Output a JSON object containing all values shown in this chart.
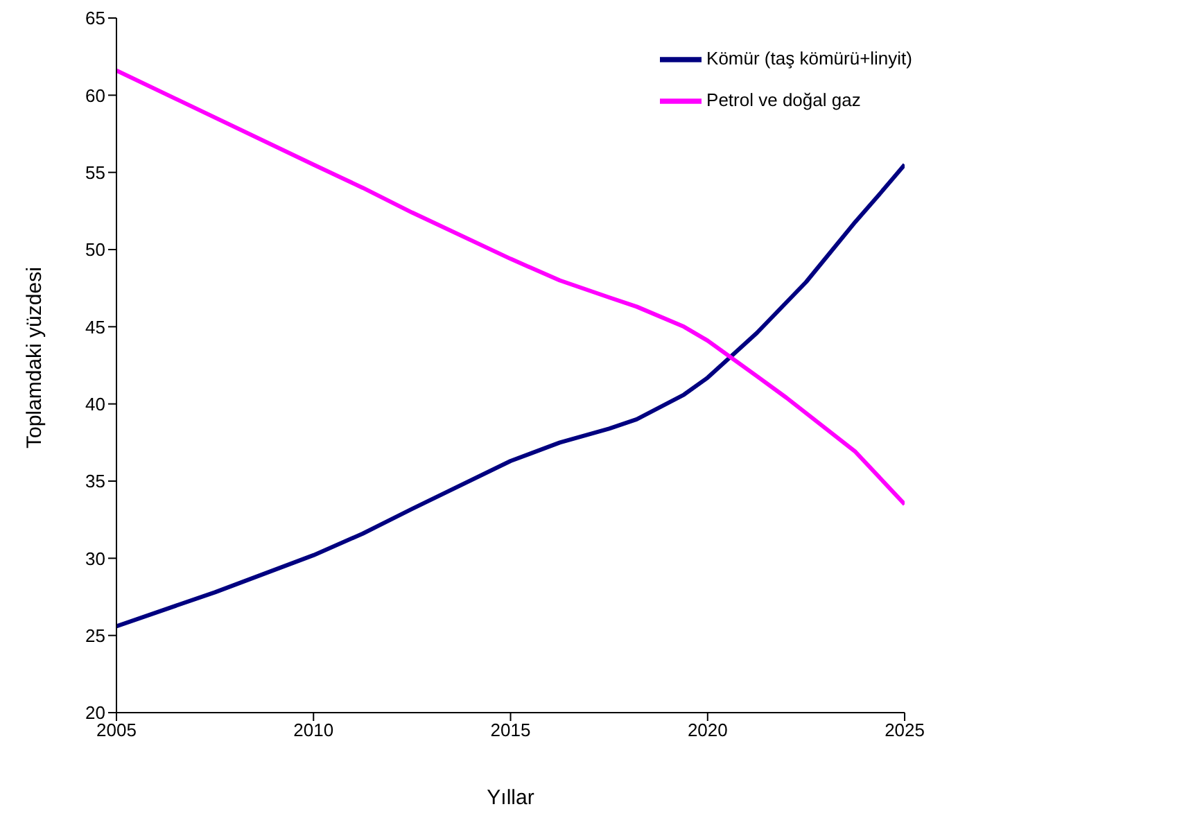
{
  "chart_data": {
    "type": "line",
    "xlabel": "Yıllar",
    "ylabel": "Toplamdaki yüzdesi",
    "xlim": [
      2005,
      2025
    ],
    "xticks": [
      2005,
      2010,
      2015,
      2020,
      2025
    ],
    "ylim": [
      20,
      65
    ],
    "yticks": [
      20,
      25,
      30,
      35,
      40,
      45,
      50,
      55,
      60,
      65
    ],
    "grid": false,
    "legend": "top right",
    "marker": "none",
    "line_style": "solid",
    "series": [
      {
        "name": "Kömür (taş kömürü+linyit)",
        "color": "#000080",
        "x": [
          2005,
          2007.5,
          2010,
          2011.25,
          2012.5,
          2015,
          2016.25,
          2017.5,
          2018.2,
          2019.4,
          2020,
          2021.25,
          2022.5,
          2023.75,
          2024.4,
          2025
        ],
        "values": [
          25.6,
          27.8,
          30.2,
          31.6,
          33.2,
          36.3,
          37.5,
          38.4,
          39.0,
          40.6,
          41.7,
          44.6,
          47.9,
          51.8,
          53.7,
          55.5
        ]
      },
      {
        "name": "Petrol ve doğal gaz",
        "color": "#ff00ff",
        "x": [
          2005,
          2010,
          2011.25,
          2012.5,
          2015,
          2016.25,
          2017.5,
          2018.2,
          2019.4,
          2020,
          2021.25,
          2022,
          2023.75,
          2025
        ],
        "values": [
          61.6,
          55.5,
          54.0,
          52.4,
          49.4,
          48.0,
          46.9,
          46.3,
          45.0,
          44.1,
          41.8,
          40.4,
          36.9,
          33.5
        ]
      }
    ]
  }
}
